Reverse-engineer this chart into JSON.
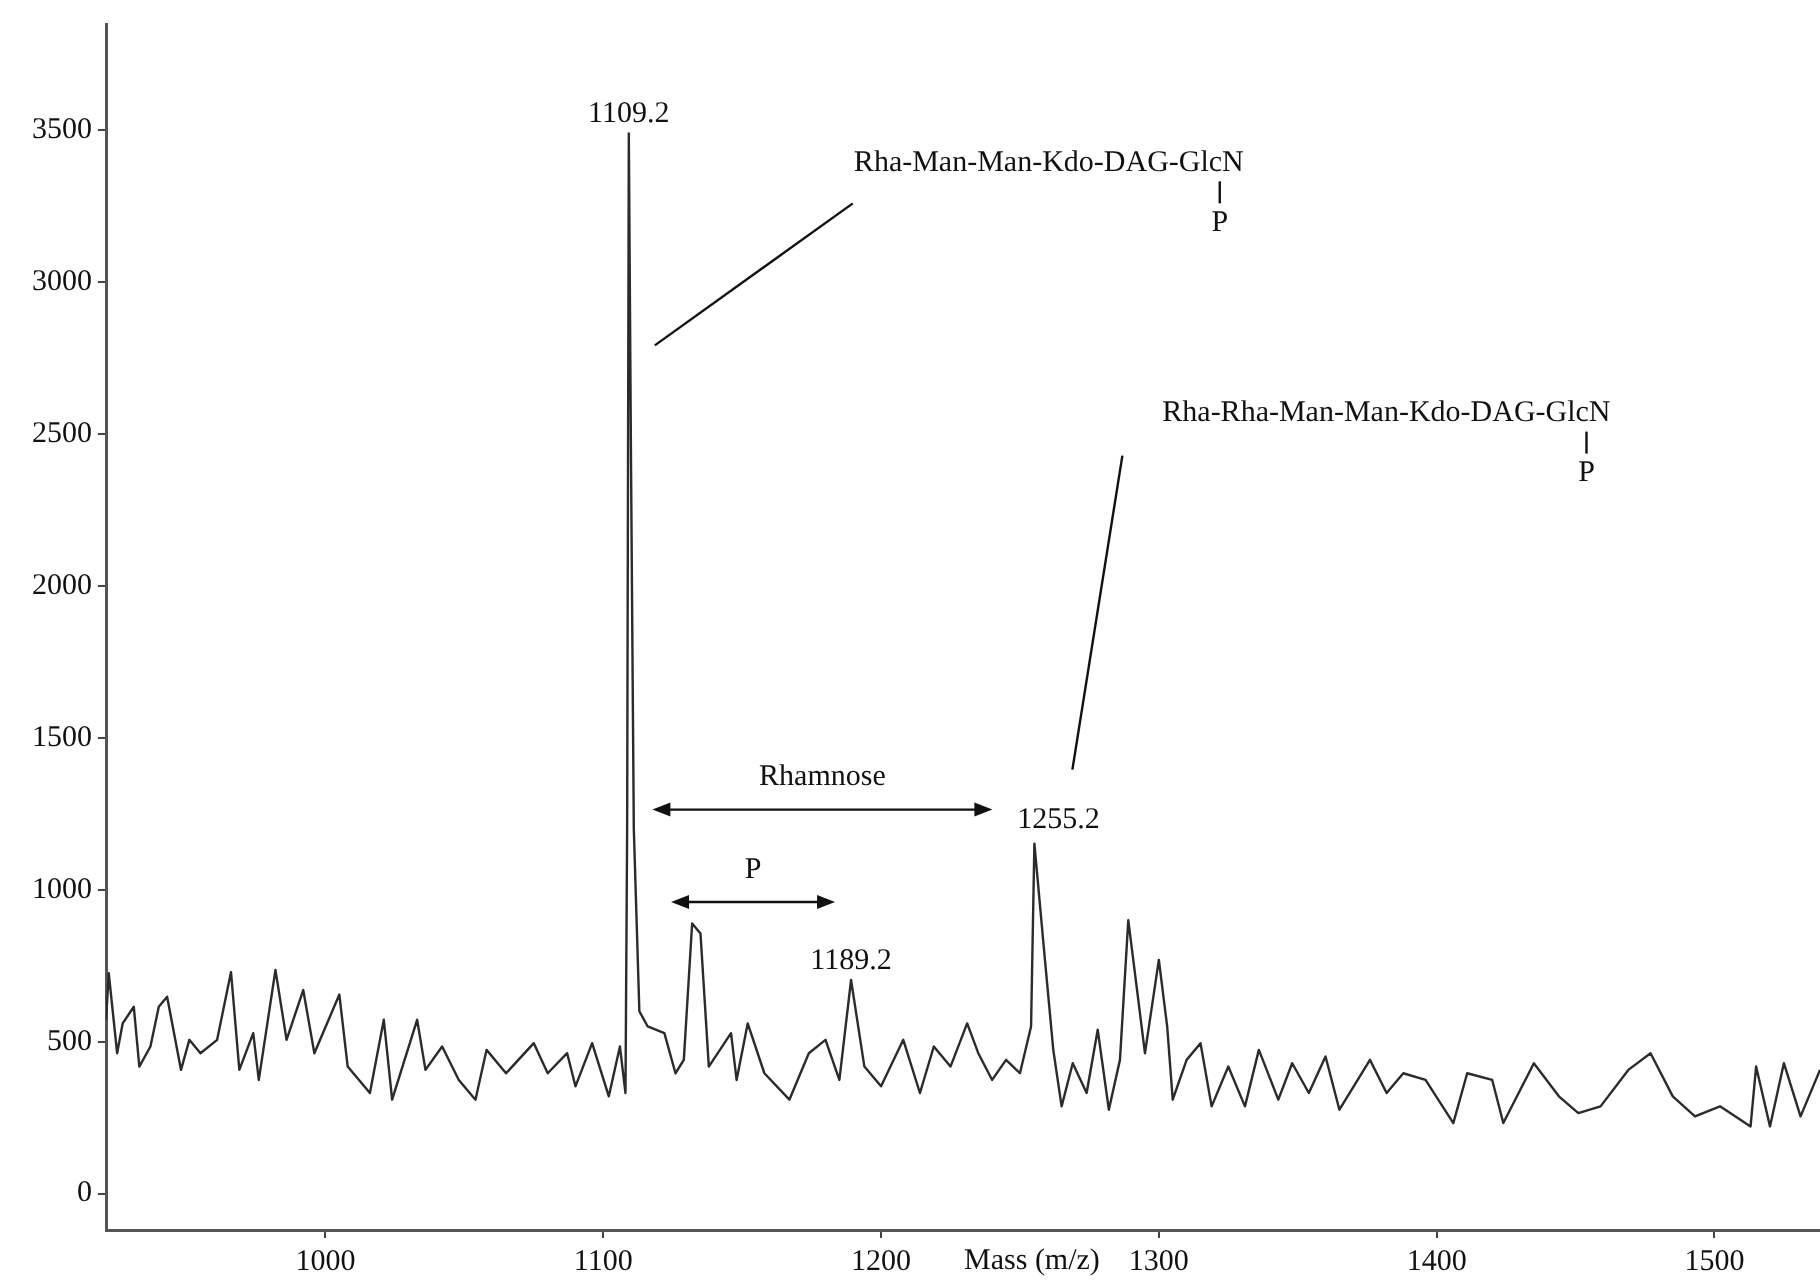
{
  "chart_data": {
    "type": "line",
    "xlabel": "Mass (m/z)",
    "color": "#2b2b2b",
    "xlim": [
      921,
      1538
    ],
    "xticks": [
      1000,
      1100,
      1200,
      1300,
      1400,
      1500
    ],
    "ylim": [
      -120,
      3850
    ],
    "yticks": [
      0,
      500,
      1000,
      1500,
      2000,
      2500,
      3000,
      3500
    ],
    "grid": false,
    "legend": false,
    "marker": "none",
    "line_style": "solid",
    "x": [
      921,
      922,
      925,
      927,
      931,
      933,
      937,
      940,
      943,
      948,
      951,
      955,
      961,
      966,
      969,
      974,
      976,
      982,
      986,
      992,
      996,
      1005,
      1008,
      1016,
      1021,
      1024,
      1033,
      1036,
      1042,
      1048,
      1054,
      1058,
      1065,
      1075,
      1080,
      1087,
      1090,
      1096,
      1102,
      1106,
      1108,
      1108.6,
      1109.2,
      1110,
      1111,
      1113,
      1116,
      1122,
      1126,
      1129,
      1132,
      1135,
      1138,
      1146,
      1148,
      1152,
      1158,
      1167,
      1174,
      1180,
      1185,
      1189.2,
      1194,
      1200,
      1208,
      1214,
      1219,
      1225,
      1231,
      1235,
      1240,
      1245,
      1250,
      1254,
      1255.2,
      1259,
      1262,
      1265,
      1269,
      1274,
      1278,
      1282,
      1286,
      1289,
      1292,
      1295,
      1300,
      1303,
      1305,
      1310,
      1315,
      1319,
      1325,
      1331,
      1336,
      1343,
      1348,
      1354,
      1360,
      1365,
      1376,
      1382,
      1388,
      1396,
      1406,
      1411,
      1420,
      1424,
      1435,
      1444,
      1451,
      1459,
      1469,
      1477,
      1485,
      1493,
      1502,
      1513,
      1515,
      1520,
      1525,
      1531,
      1538
    ],
    "values": [
      572,
      725,
      462,
      560,
      615,
      418,
      484,
      615,
      648,
      407,
      506,
      462,
      506,
      729,
      407,
      528,
      374,
      736,
      506,
      670,
      462,
      655,
      418,
      331,
      572,
      309,
      572,
      407,
      484,
      374,
      309,
      473,
      396,
      495,
      396,
      462,
      353,
      495,
      320,
      484,
      331,
      1200,
      3490,
      2400,
      1200,
      600,
      550,
      528,
      396,
      440,
      889,
      856,
      418,
      528,
      374,
      560,
      396,
      309,
      462,
      506,
      374,
      703,
      418,
      353,
      506,
      331,
      484,
      418,
      560,
      462,
      374,
      440,
      396,
      550,
      1152,
      769,
      473,
      287,
      429,
      331,
      539,
      276,
      440,
      900,
      681,
      462,
      769,
      550,
      309,
      440,
      495,
      287,
      418,
      287,
      473,
      309,
      429,
      331,
      451,
      276,
      440,
      331,
      396,
      374,
      232,
      396,
      374,
      232,
      429,
      320,
      265,
      287,
      407,
      462,
      320,
      254,
      287,
      221,
      418,
      221,
      429,
      254,
      407
    ],
    "annotations": [
      {
        "text": "1109.2",
        "x": 1109.2,
        "y": 3490
      },
      {
        "text": "1189.2",
        "x": 1189.2,
        "y": 703
      },
      {
        "text": "1255.2",
        "x": 1255.2,
        "y": 1152
      },
      "Rha-Man-Man-Kdo-DAG-GlcN\nP",
      "Rha-Rha-Man-Man-Kdo-DAG-GlcN\nP",
      "Rhamnose",
      "P"
    ]
  }
}
